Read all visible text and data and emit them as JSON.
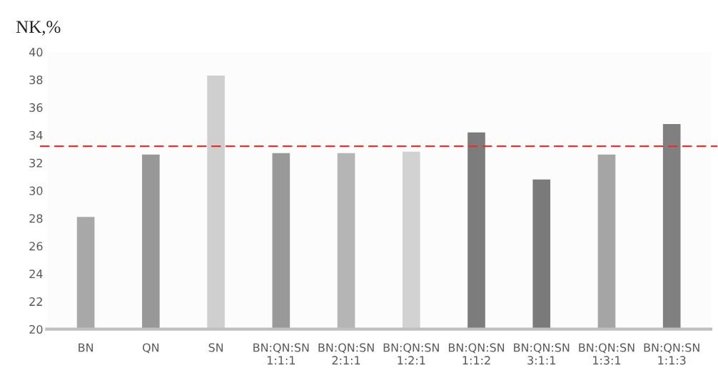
{
  "chart_data": {
    "type": "bar",
    "title": "NK,%",
    "categories": [
      "BN",
      "QN",
      "SN",
      "BN:QN:SN\n1:1:1",
      "BN:QN:SN\n2:1:1",
      "BN:QN:SN\n1:2:1",
      "BN:QN:SN\n1:1:2",
      "BN:QN:SN\n3:1:1",
      "BN:QN:SN\n1:3:1",
      "BN:QN:SN\n1:1:3"
    ],
    "values": [
      28.1,
      32.6,
      38.3,
      32.7,
      32.7,
      32.8,
      34.2,
      30.8,
      32.6,
      34.8
    ],
    "colors": [
      "#a8a8a8",
      "#989898",
      "#cfcfcf",
      "#999999",
      "#b5b5b5",
      "#d2d2d2",
      "#7c7c7c",
      "#7a7a7a",
      "#a5a5a5",
      "#808080"
    ],
    "ylim": [
      20,
      40
    ],
    "yticks": [
      20,
      22,
      24,
      26,
      28,
      30,
      32,
      34,
      36,
      38,
      40
    ],
    "ref_lines": [
      {
        "axis": "y",
        "value": 33.2,
        "color": "#e8302a",
        "line_style": "dashed"
      }
    ],
    "grid": false,
    "legend": false
  }
}
